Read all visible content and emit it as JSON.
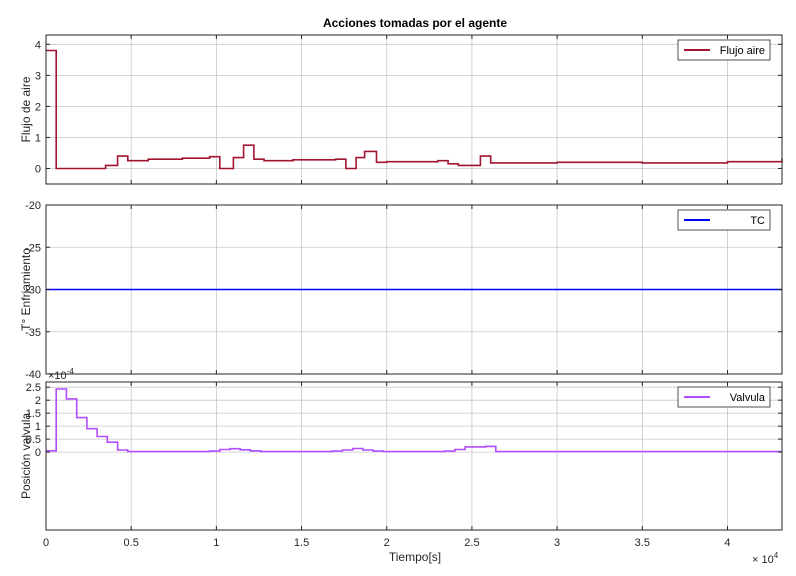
{
  "figure": {
    "title": "Acciones tomadas por el agente",
    "xlabel": "Tiempo[s]",
    "x_exponent_label": "× 10^4"
  },
  "colors": {
    "flujo": "#a2142f",
    "tc": "#0000ff",
    "valvula": "#b24dff",
    "grid": "#c8c8c8",
    "axis": "#262626"
  },
  "chart_data": [
    {
      "type": "line",
      "ylabel": "Flujo de aire",
      "xlim": [
        0,
        43200
      ],
      "ylim": [
        -0.5,
        4.3
      ],
      "xticks": [
        0,
        5000,
        10000,
        15000,
        20000,
        25000,
        30000,
        35000,
        40000
      ],
      "yticks": [
        0,
        1,
        2,
        3,
        4
      ],
      "ytick_labels": [
        "0",
        "1",
        "2",
        "3",
        "4"
      ],
      "grid": true,
      "legend": "top-right",
      "series": [
        {
          "name": "Flujo aire",
          "color": "#a2142f",
          "step": true,
          "x": [
            0,
            500,
            600,
            3500,
            4200,
            4800,
            6000,
            8000,
            9600,
            10200,
            11000,
            11600,
            12200,
            12800,
            14500,
            17000,
            17600,
            18200,
            18700,
            19400,
            20000,
            23000,
            23600,
            24200,
            25500,
            26100,
            30000,
            35000,
            40000,
            43200
          ],
          "y": [
            3.8,
            3.8,
            0.0,
            0.1,
            0.4,
            0.25,
            0.3,
            0.33,
            0.38,
            0.0,
            0.35,
            0.75,
            0.3,
            0.25,
            0.28,
            0.3,
            0.0,
            0.35,
            0.55,
            0.2,
            0.22,
            0.25,
            0.15,
            0.1,
            0.4,
            0.18,
            0.2,
            0.18,
            0.22,
            0.32
          ]
        }
      ]
    },
    {
      "type": "line",
      "ylabel": "T° Enfriamiento",
      "xlim": [
        0,
        43200
      ],
      "ylim": [
        -40,
        -20
      ],
      "xticks": [
        0,
        5000,
        10000,
        15000,
        20000,
        25000,
        30000,
        35000,
        40000
      ],
      "yticks": [
        -40,
        -35,
        -30,
        -25,
        -20
      ],
      "ytick_labels": [
        "-40",
        "-35",
        "-30",
        "-25",
        "-20"
      ],
      "grid": true,
      "legend": "top-right",
      "series": [
        {
          "name": "TC",
          "color": "#0000ff",
          "step": false,
          "x": [
            0,
            43200
          ],
          "y": [
            -30,
            -30
          ]
        }
      ]
    },
    {
      "type": "line",
      "ylabel": "Posición valvula",
      "y_exponent_label": "×10^-4",
      "xlim": [
        0,
        43200
      ],
      "ylim": [
        -0.0003,
        0.00027
      ],
      "xticks": [
        0,
        5000,
        10000,
        15000,
        20000,
        25000,
        30000,
        35000,
        40000
      ],
      "xtick_labels": [
        "0",
        "0.5",
        "1",
        "1.5",
        "2",
        "2.5",
        "3",
        "3.5",
        "4"
      ],
      "yticks": [
        0,
        5e-05,
        0.0001,
        0.00015,
        0.0002,
        0.00025
      ],
      "ytick_labels": [
        "0",
        "0.5",
        "1",
        "1.5",
        "2",
        "2.5"
      ],
      "grid": true,
      "legend": "top-right",
      "series": [
        {
          "name": "Valvula",
          "color": "#b24dff",
          "step": true,
          "x": [
            0,
            500,
            600,
            1200,
            1800,
            2400,
            3000,
            3600,
            4200,
            4800,
            6000,
            9600,
            10200,
            10800,
            11400,
            12000,
            12600,
            16800,
            17400,
            18000,
            18600,
            19200,
            19800,
            23400,
            24000,
            24600,
            25800,
            26400,
            43200
          ],
          "y": [
            5e-06,
            5e-06,
            0.000243,
            0.000205,
            0.000133,
            9e-05,
            6e-05,
            3.8e-05,
            8e-06,
            2e-06,
            2e-06,
            4e-06,
            1e-05,
            1.3e-05,
            9e-06,
            5e-06,
            2e-06,
            4e-06,
            8e-06,
            1.4e-05,
            8e-06,
            4e-06,
            2e-06,
            4e-06,
            1e-05,
            2e-05,
            2.2e-05,
            2e-06,
            2e-06
          ]
        }
      ]
    }
  ]
}
